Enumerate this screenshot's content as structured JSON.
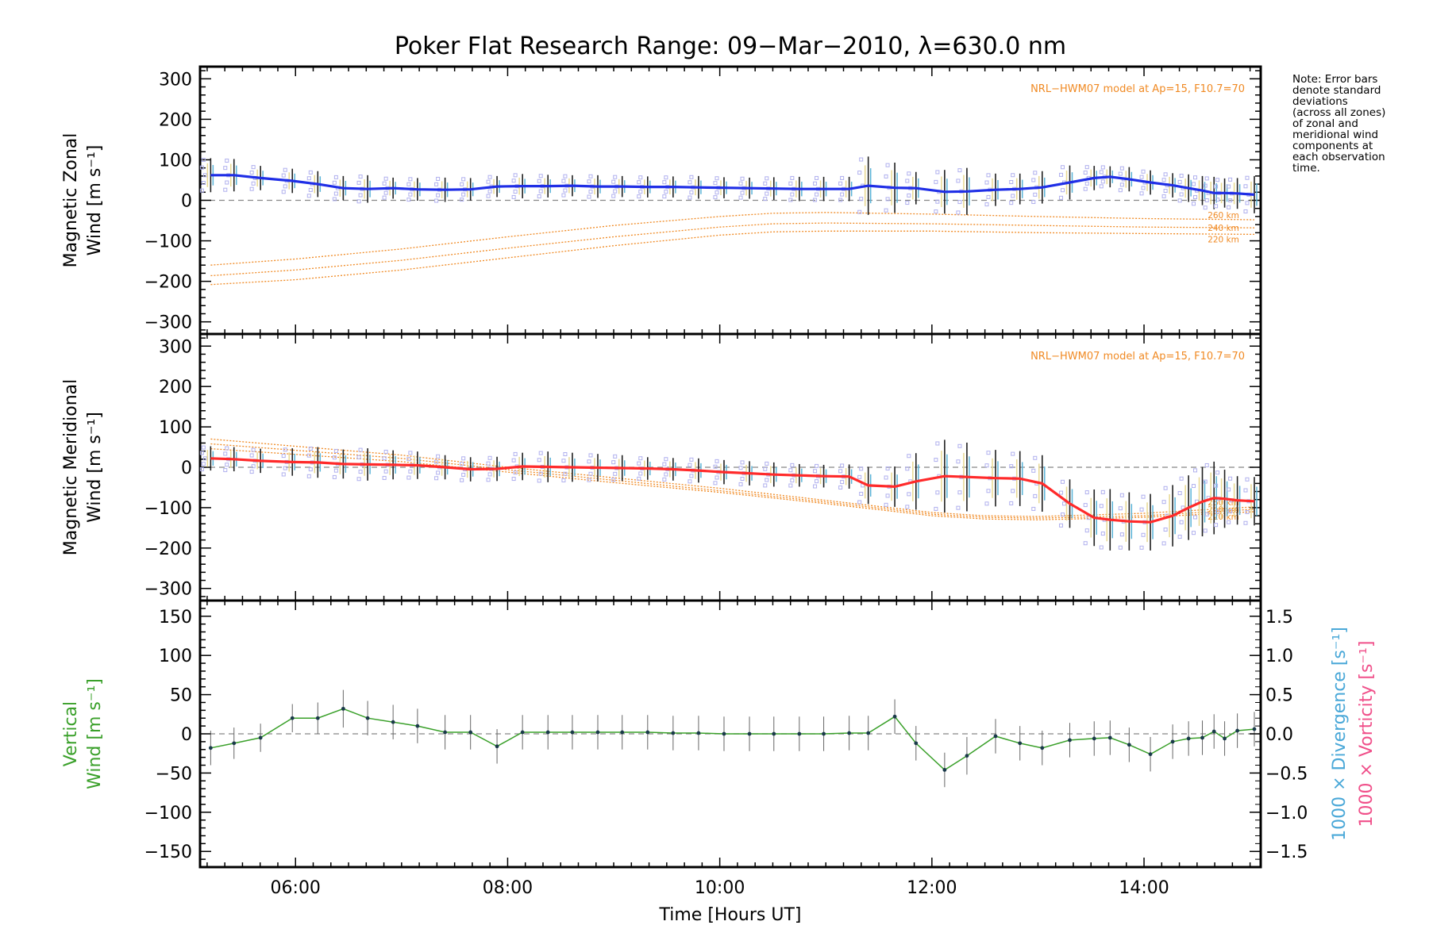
{
  "chart_data": {
    "type": "line",
    "title": "Poker Flat Research Range: 09−Mar−2010, λ=630.0 nm",
    "xlabel": "Time [Hours UT]",
    "xlim": [
      5.1,
      15.1
    ],
    "x_ticks": [
      6,
      8,
      10,
      12,
      14
    ],
    "x_tick_labels": [
      "06:00",
      "08:00",
      "10:00",
      "12:00",
      "14:00"
    ],
    "note": "Note: Error bars\ndenote standard\ndeviations\n(across all zones)\nof zonal and\nmeridional wind\ncomponents at\neach observation\ntime.",
    "times": [
      5.2,
      5.42,
      5.67,
      5.97,
      6.21,
      6.45,
      6.68,
      6.92,
      7.15,
      7.41,
      7.65,
      7.9,
      8.14,
      8.38,
      8.61,
      8.85,
      9.08,
      9.32,
      9.56,
      9.8,
      10.04,
      10.28,
      10.51,
      10.75,
      10.98,
      11.22,
      11.4,
      11.65,
      11.85,
      12.12,
      12.33,
      12.6,
      12.83,
      13.04,
      13.3,
      13.53,
      13.68,
      13.86,
      14.06,
      14.27,
      14.42,
      14.55,
      14.66,
      14.76,
      14.88,
      15.04
    ],
    "panels": [
      {
        "name": "zonal",
        "ylabel": "Magnetic Zonal\nWind [m s⁻¹]",
        "ylim": [
          -330,
          330
        ],
        "yticks": [
          -300,
          -200,
          -100,
          0,
          100,
          200,
          300
        ],
        "line_color": "#1f2ee6",
        "model_note": "NRL−HWM07 model at Ap=15, F10.7=70",
        "values": [
          62,
          62,
          55,
          48,
          40,
          30,
          28,
          30,
          27,
          26,
          27,
          34,
          35,
          35,
          36,
          34,
          34,
          33,
          33,
          32,
          31,
          30,
          29,
          28,
          28,
          28,
          36,
          31,
          30,
          21,
          22,
          26,
          28,
          32,
          44,
          55,
          58,
          52,
          44,
          37,
          30,
          24,
          18,
          18,
          17,
          14
        ],
        "errors": [
          42,
          40,
          30,
          30,
          32,
          30,
          34,
          26,
          28,
          30,
          28,
          26,
          30,
          28,
          26,
          28,
          26,
          26,
          26,
          28,
          26,
          26,
          28,
          30,
          30,
          30,
          72,
          62,
          40,
          54,
          58,
          40,
          38,
          40,
          42,
          30,
          26,
          30,
          30,
          30,
          34,
          36,
          40,
          36,
          38,
          46
        ],
        "model": {
          "altitudes": [
            "260 km",
            "240 km",
            "220 km"
          ],
          "x": [
            5.2,
            6.0,
            7.0,
            8.0,
            9.0,
            10.0,
            10.5,
            11.0,
            12.0,
            13.0,
            14.0,
            15.04
          ],
          "series": [
            [
              -160,
              -145,
              -120,
              -90,
              -62,
              -40,
              -32,
              -30,
              -34,
              -40,
              -45,
              -48
            ],
            [
              -186,
              -172,
              -148,
              -118,
              -90,
              -66,
              -58,
              -56,
              -58,
              -62,
              -66,
              -68
            ],
            [
              -208,
              -196,
              -172,
              -142,
              -112,
              -86,
              -78,
              -76,
              -76,
              -80,
              -82,
              -84
            ]
          ]
        }
      },
      {
        "name": "meridional",
        "ylabel": "Magnetic Meridional\nWind [m s⁻¹]",
        "ylim": [
          -330,
          330
        ],
        "yticks": [
          -300,
          -200,
          -100,
          0,
          100,
          200,
          300
        ],
        "line_color": "#ff2a2a",
        "model_note": "NRL−HWM07 model at Ap=15, F10.7=70",
        "values": [
          22,
          20,
          16,
          13,
          12,
          8,
          7,
          6,
          5,
          0,
          -5,
          -4,
          2,
          1,
          0,
          -1,
          -2,
          -3,
          -5,
          -8,
          -12,
          -15,
          -18,
          -20,
          -22,
          -23,
          -45,
          -48,
          -35,
          -22,
          -24,
          -27,
          -28,
          -40,
          -90,
          -125,
          -130,
          -134,
          -136,
          -120,
          -100,
          -85,
          -76,
          -78,
          -82,
          -84
        ],
        "errors": [
          30,
          30,
          30,
          34,
          38,
          36,
          40,
          36,
          34,
          30,
          30,
          30,
          34,
          38,
          36,
          34,
          32,
          28,
          28,
          30,
          30,
          30,
          30,
          28,
          28,
          30,
          46,
          50,
          70,
          90,
          85,
          70,
          68,
          70,
          60,
          70,
          76,
          72,
          70,
          76,
          80,
          86,
          90,
          72,
          60,
          60
        ],
        "model": {
          "altitudes": [
            "260 km",
            "240 km",
            "220 km"
          ],
          "x": [
            5.2,
            6.0,
            7.0,
            8.0,
            9.0,
            10.0,
            11.0,
            12.0,
            12.5,
            13.0,
            14.0,
            15.04
          ],
          "series": [
            [
              70,
              52,
              30,
              0,
              -26,
              -52,
              -82,
              -112,
              -120,
              -122,
              -114,
              -98
            ],
            [
              58,
              42,
              22,
              -6,
              -32,
              -58,
              -86,
              -116,
              -124,
              -126,
              -120,
              -104
            ],
            [
              46,
              32,
              14,
              -12,
              -38,
              -62,
              -90,
              -120,
              -128,
              -130,
              -124,
              -110
            ]
          ]
        }
      },
      {
        "name": "vertical",
        "ylabel_word1": "Vertical",
        "ylabel_word2": "Wind [m s⁻¹]",
        "ylim": [
          -170,
          170
        ],
        "yticks": [
          -150,
          -100,
          -50,
          0,
          50,
          100,
          150
        ],
        "line_color": "#3aa02a",
        "values": [
          -18,
          -12,
          -5,
          20,
          20,
          32,
          20,
          15,
          10,
          2,
          2,
          -16,
          2,
          2,
          2,
          2,
          2,
          2,
          1,
          1,
          0,
          0,
          0,
          0,
          0,
          1,
          1,
          22,
          -12,
          -46,
          -28,
          -3,
          -12,
          -18,
          -8,
          -6,
          -5,
          -14,
          -26,
          -10,
          -6,
          -5,
          3,
          -6,
          4,
          6
        ],
        "errors": [
          22,
          20,
          18,
          18,
          20,
          24,
          22,
          22,
          22,
          22,
          22,
          22,
          22,
          22,
          22,
          22,
          22,
          22,
          22,
          22,
          22,
          22,
          22,
          22,
          22,
          22,
          22,
          22,
          22,
          22,
          24,
          22,
          22,
          22,
          22,
          22,
          22,
          22,
          22,
          22,
          22,
          22,
          22,
          22,
          22,
          22
        ],
        "right_axis": {
          "ylim": [
            -1.7,
            1.7
          ],
          "yticks": [
            -1.5,
            -1.0,
            -0.5,
            0.0,
            0.5,
            1.0,
            1.5
          ],
          "ytick_labels": [
            "−1.5",
            "−1.0",
            "−0.5",
            "0.0",
            "0.5",
            "1.0",
            "1.5"
          ],
          "label_divergence": "1000 × Divergence [s⁻¹]",
          "label_vorticity": "1000 × Vorticity [s⁻¹]",
          "divergence_color": "#4aa8d8",
          "vorticity_color": "#f0508a"
        }
      }
    ]
  },
  "colors": {
    "model_line": "#f08a24",
    "zone_markers": "#b0b0ee",
    "errorbar": "#202020",
    "zero_line": "#888888"
  }
}
